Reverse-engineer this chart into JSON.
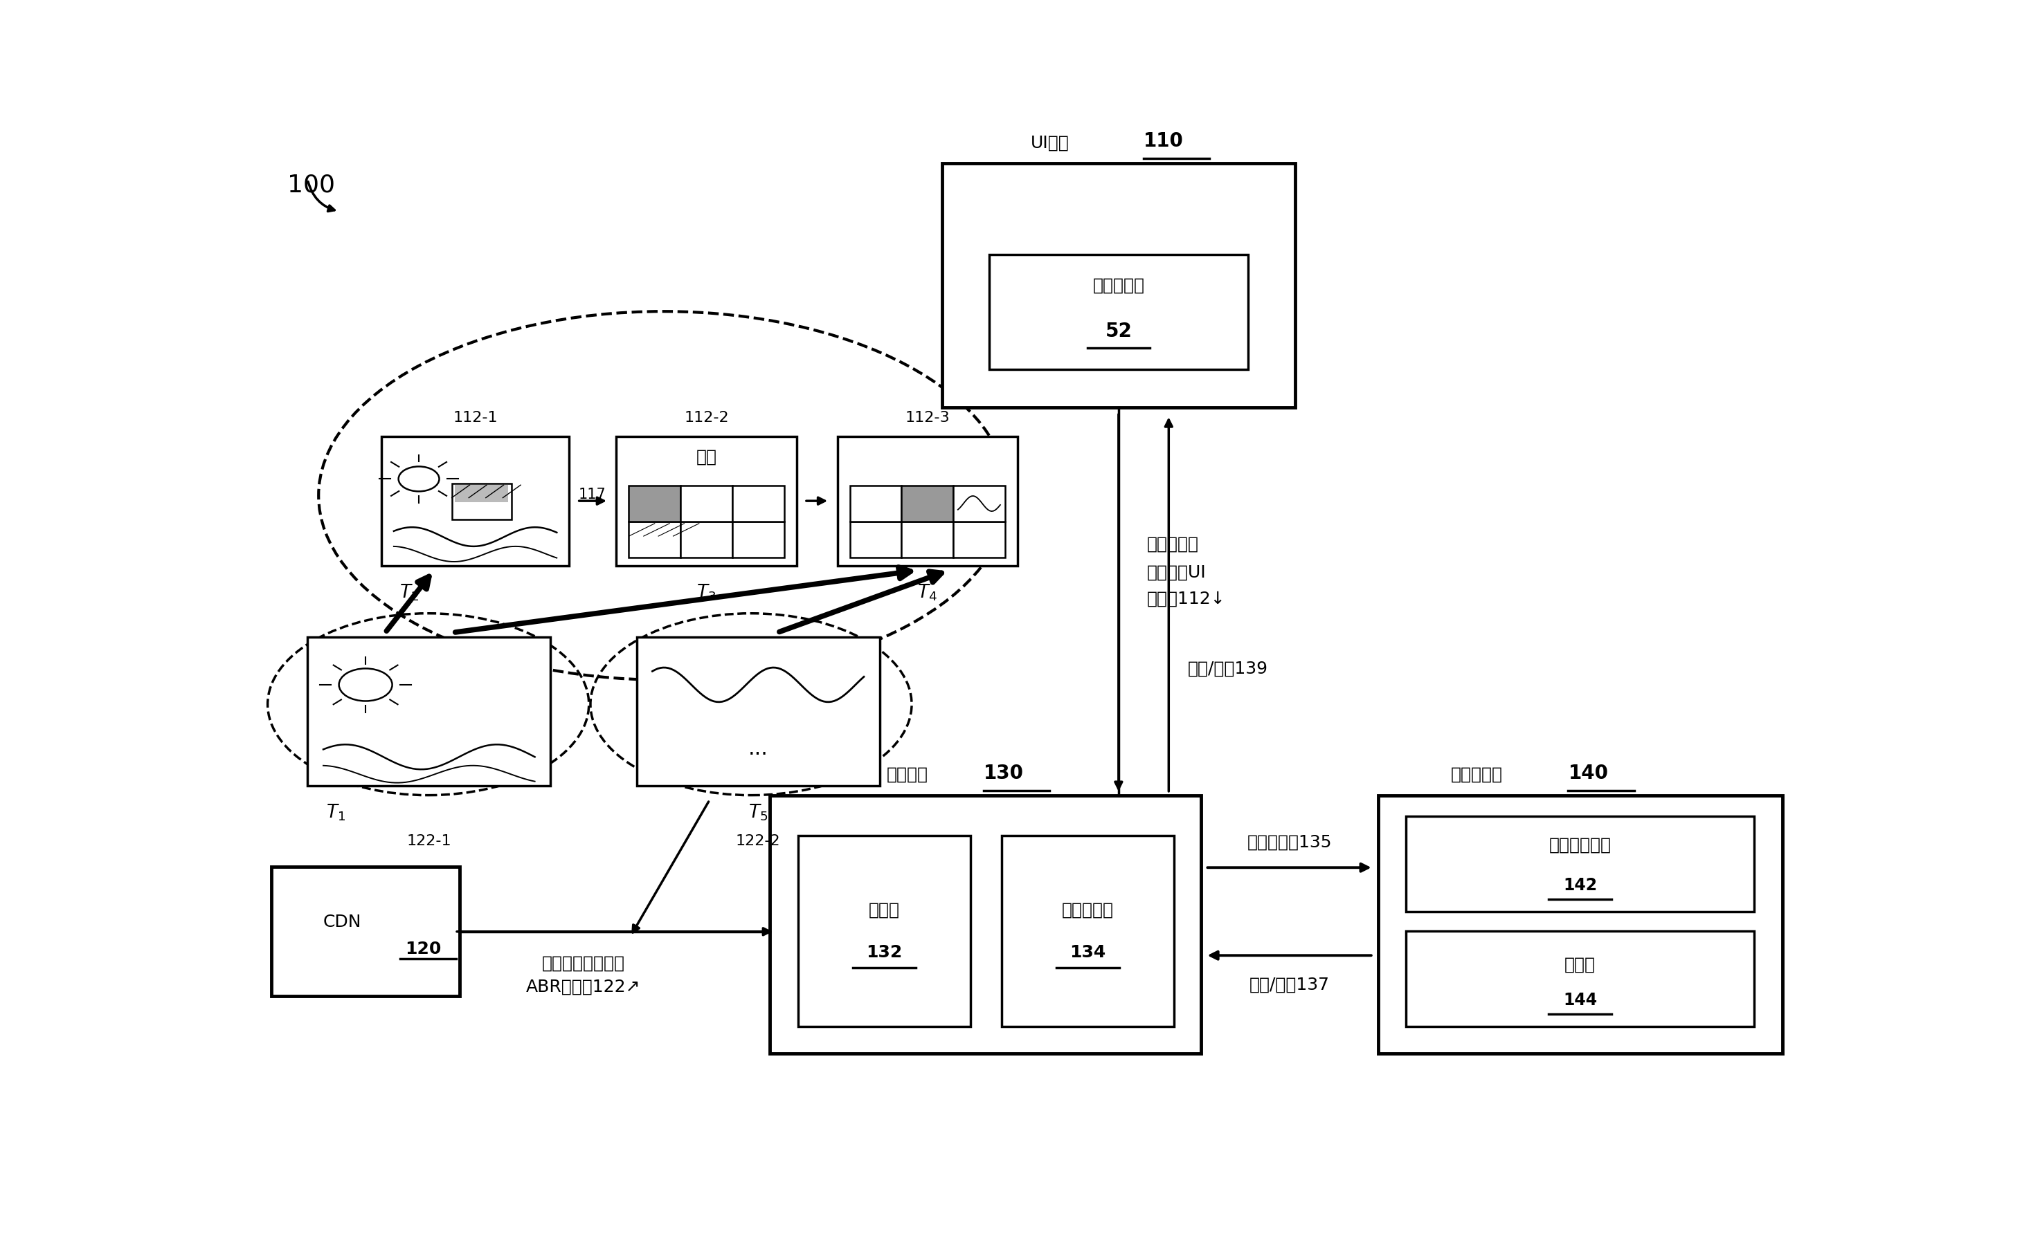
{
  "bg_color": "#ffffff",
  "fig_ref": "100",
  "ui_engine_label": "UI引擎",
  "ui_engine_num": "110",
  "trans_sel_label": "转变选择器",
  "trans_sel_num": "52",
  "edge_label": "边缘设备",
  "edge_num": "130",
  "ctrl_label": "控制器",
  "ctrl_num": "132",
  "mux_label": "多路复用器",
  "mux_num": "134",
  "client_label": "客户端设备",
  "client_num": "140",
  "cbuf_label": "客户端缓冲器",
  "cbuf_num": "142",
  "dec_label": "解码器",
  "dec_num": "144",
  "cdn_label": "CDN",
  "cdn_num": "120",
  "low_lat_1": "低延迟内容",
  "low_lat_2": "（例如，UI",
  "low_lat_3": "视频）112",
  "buf_1": "缓冲内容（例如，",
  "buf_2": "ABR视频）122",
  "cv_label": "客户端视频135",
  "rf139": "请求/反馈139",
  "rf137": "请求/反馈137",
  "f112_1": "112-1",
  "f112_2": "112-2",
  "f112_3": "112-3",
  "f122_1": "122-1",
  "f122_2": "122-2",
  "lbl_117": "117",
  "img_label": "图像"
}
